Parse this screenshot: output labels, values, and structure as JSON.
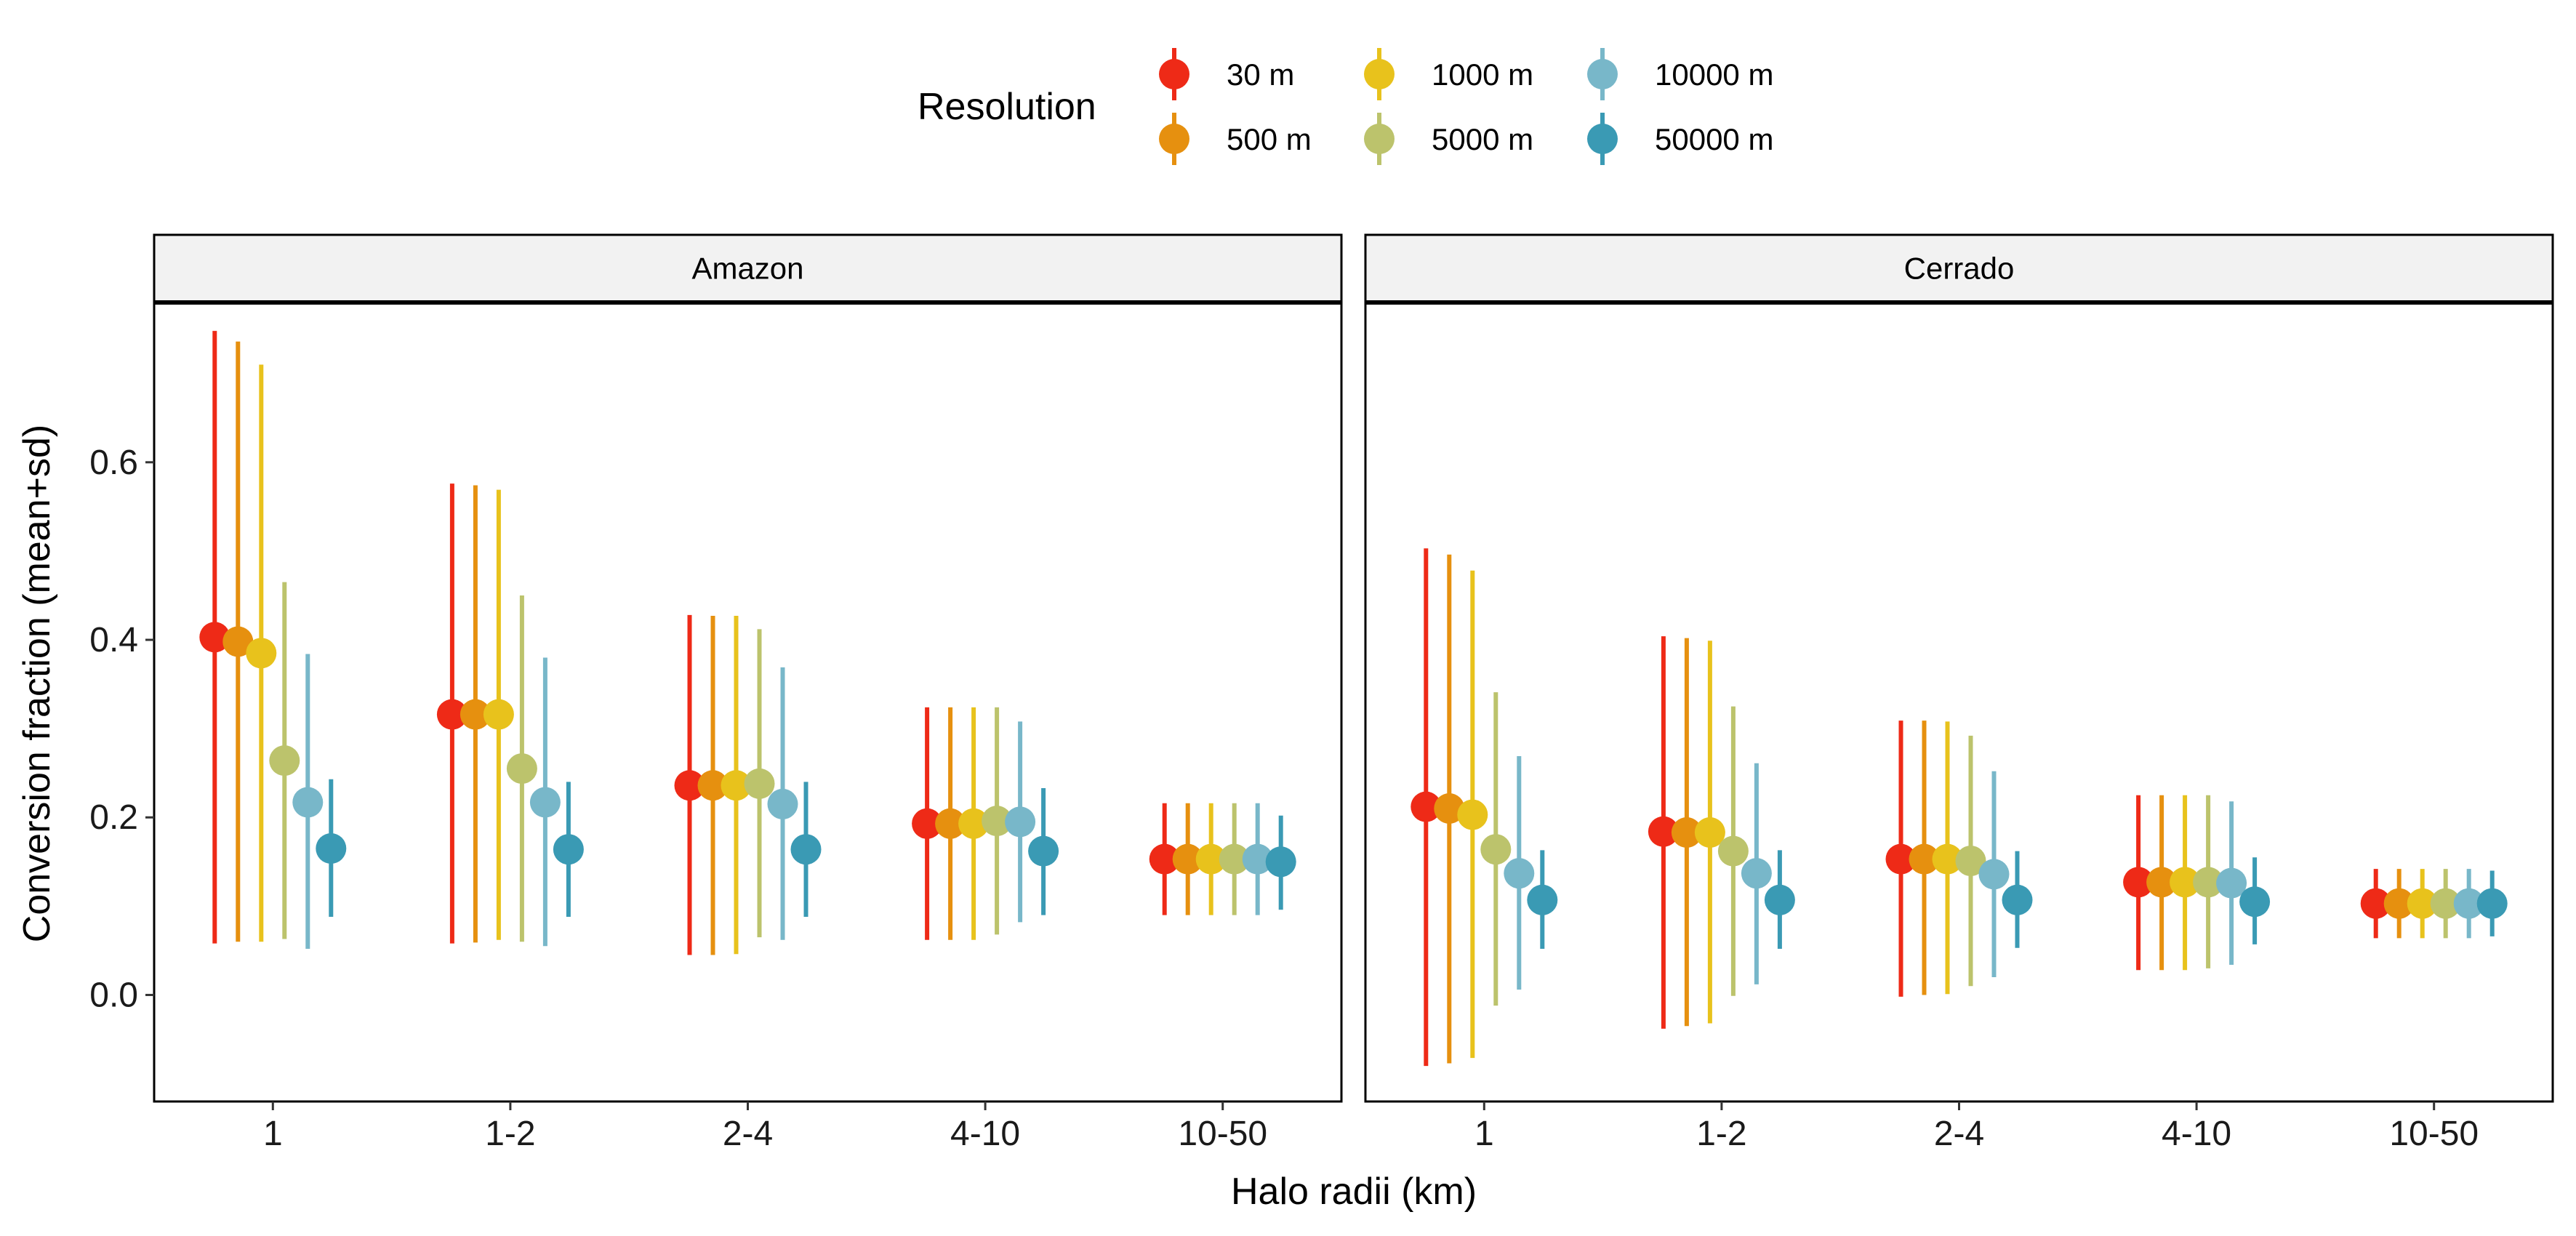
{
  "chart_data": {
    "type": "scatter",
    "subtype": "point-range (mean with error bars)",
    "xlabel": "Halo radii (km)",
    "ylabel": "Conversion fraction (mean+sd)",
    "categories": [
      "1",
      "1-2",
      "2-4",
      "4-10",
      "10-50"
    ],
    "ylim": [
      -0.12,
      0.78
    ],
    "yticks": [
      0.0,
      0.2,
      0.4,
      0.6
    ],
    "ytick_labels": [
      "0.0",
      "0.2",
      "0.4",
      "0.6"
    ],
    "grid": false,
    "legend": {
      "title": "Resolution",
      "position": "top",
      "entries": [
        "30 m",
        "500 m",
        "1000 m",
        "5000 m",
        "10000 m",
        "50000 m"
      ]
    },
    "series_colors": [
      "#ee2a17",
      "#e6900f",
      "#e8c21c",
      "#bcc36c",
      "#78b7c9",
      "#3a9ab4"
    ],
    "panels": [
      {
        "title": "Amazon",
        "series": [
          {
            "name": "30 m",
            "mean": [
              0.403,
              0.316,
              0.236,
              0.193,
              0.153
            ],
            "lower": [
              0.058,
              0.058,
              0.045,
              0.062,
              0.09
            ],
            "upper": [
              0.748,
              0.576,
              0.428,
              0.324,
              0.216
            ]
          },
          {
            "name": "500 m",
            "mean": [
              0.398,
              0.316,
              0.236,
              0.193,
              0.153
            ],
            "lower": [
              0.06,
              0.059,
              0.045,
              0.062,
              0.09
            ],
            "upper": [
              0.736,
              0.574,
              0.427,
              0.324,
              0.216
            ]
          },
          {
            "name": "1000 m",
            "mean": [
              0.385,
              0.316,
              0.236,
              0.193,
              0.153
            ],
            "lower": [
              0.06,
              0.062,
              0.046,
              0.062,
              0.09
            ],
            "upper": [
              0.71,
              0.569,
              0.427,
              0.324,
              0.216
            ]
          },
          {
            "name": "5000 m",
            "mean": [
              0.264,
              0.255,
              0.238,
              0.196,
              0.153
            ],
            "lower": [
              0.063,
              0.06,
              0.065,
              0.068,
              0.09
            ],
            "upper": [
              0.465,
              0.45,
              0.412,
              0.324,
              0.216
            ]
          },
          {
            "name": "10000 m",
            "mean": [
              0.217,
              0.217,
              0.215,
              0.195,
              0.153
            ],
            "lower": [
              0.052,
              0.055,
              0.062,
              0.082,
              0.09
            ],
            "upper": [
              0.384,
              0.38,
              0.369,
              0.308,
              0.216
            ]
          },
          {
            "name": "50000 m",
            "mean": [
              0.165,
              0.164,
              0.164,
              0.162,
              0.15
            ],
            "lower": [
              0.088,
              0.088,
              0.088,
              0.09,
              0.096
            ],
            "upper": [
              0.243,
              0.24,
              0.24,
              0.233,
              0.202
            ]
          }
        ]
      },
      {
        "title": "Cerrado",
        "series": [
          {
            "name": "30 m",
            "mean": [
              0.212,
              0.184,
              0.153,
              0.127,
              0.103
            ],
            "lower": [
              -0.08,
              -0.038,
              -0.002,
              0.028,
              0.064
            ],
            "upper": [
              0.503,
              0.404,
              0.309,
              0.225,
              0.142
            ]
          },
          {
            "name": "500 m",
            "mean": [
              0.21,
              0.183,
              0.153,
              0.127,
              0.103
            ],
            "lower": [
              -0.077,
              -0.035,
              0.0,
              0.028,
              0.064
            ],
            "upper": [
              0.496,
              0.402,
              0.309,
              0.225,
              0.142
            ]
          },
          {
            "name": "1000 m",
            "mean": [
              0.203,
              0.183,
              0.153,
              0.127,
              0.103
            ],
            "lower": [
              -0.071,
              -0.032,
              0.001,
              0.028,
              0.064
            ],
            "upper": [
              0.478,
              0.399,
              0.308,
              0.225,
              0.142
            ]
          },
          {
            "name": "5000 m",
            "mean": [
              0.164,
              0.162,
              0.151,
              0.127,
              0.103
            ],
            "lower": [
              -0.012,
              -0.001,
              0.01,
              0.03,
              0.064
            ],
            "upper": [
              0.341,
              0.325,
              0.292,
              0.225,
              0.142
            ]
          },
          {
            "name": "10000 m",
            "mean": [
              0.137,
              0.137,
              0.136,
              0.126,
              0.103
            ],
            "lower": [
              0.006,
              0.012,
              0.02,
              0.034,
              0.064
            ],
            "upper": [
              0.269,
              0.261,
              0.252,
              0.218,
              0.142
            ]
          },
          {
            "name": "50000 m",
            "mean": [
              0.107,
              0.107,
              0.107,
              0.105,
              0.103
            ],
            "lower": [
              0.052,
              0.052,
              0.053,
              0.057,
              0.066
            ],
            "upper": [
              0.163,
              0.163,
              0.162,
              0.155,
              0.14
            ]
          }
        ]
      }
    ]
  }
}
